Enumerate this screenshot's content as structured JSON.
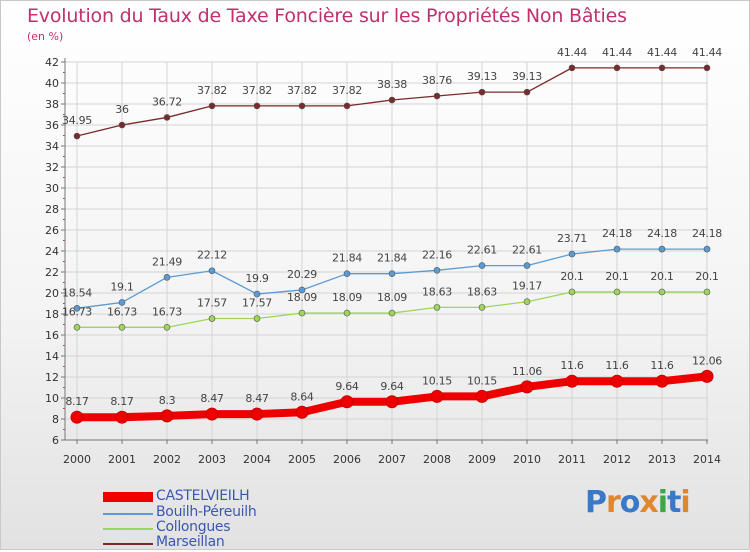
{
  "title": "Evolution du Taux de Taxe Foncière sur les Propriétés Non Bâties",
  "unit": "(en %)",
  "logo": {
    "text": "Proxiti",
    "colors": [
      "#3a78c8",
      "#e0862e",
      "#3a78c8",
      "#e0862e",
      "#3aa84a",
      "#3a78c8",
      "#e0862e"
    ]
  },
  "chart_data": {
    "type": "line",
    "x": [
      "2000",
      "2001",
      "2002",
      "2003",
      "2004",
      "2005",
      "2006",
      "2007",
      "2008",
      "2009",
      "2010",
      "2011",
      "2012",
      "2013",
      "2014"
    ],
    "ylim": [
      6,
      42
    ],
    "yticks": [
      "6",
      "8",
      "10",
      "12",
      "14",
      "16",
      "18",
      "20",
      "22",
      "24",
      "26",
      "28",
      "30",
      "32",
      "34",
      "36",
      "38",
      "40",
      "42"
    ],
    "grid": true,
    "legend_position": "bottom-left",
    "series": [
      {
        "name": "Marseillan",
        "color": "#7a2a2a",
        "width": 1.3,
        "dot": 3,
        "values": [
          34.95,
          36,
          36.72,
          37.82,
          37.82,
          37.82,
          37.82,
          38.38,
          38.76,
          39.13,
          39.13,
          41.44,
          41.44,
          41.44,
          41.44
        ],
        "labels": [
          "34.95",
          "36",
          "36.72",
          "37.82",
          "37.82",
          "37.82",
          "37.82",
          "38.38",
          "38.76",
          "39.13",
          "39.13",
          "41.44",
          "41.44",
          "41.44",
          "41.44"
        ]
      },
      {
        "name": "Bouilh-Péreuilh",
        "color": "#5b9bd5",
        "width": 1.3,
        "dot": 3,
        "values": [
          18.54,
          19.1,
          21.49,
          22.12,
          19.9,
          20.29,
          21.84,
          21.84,
          22.16,
          22.61,
          22.61,
          23.71,
          24.18,
          24.18,
          24.18
        ],
        "labels": [
          "18.54",
          "19.1",
          "21.49",
          "22.12",
          "19.9",
          "20.29",
          "21.84",
          "21.84",
          "22.16",
          "22.61",
          "22.61",
          "23.71",
          "24.18",
          "24.18",
          "24.18"
        ]
      },
      {
        "name": "Collongues",
        "color": "#9ed65a",
        "width": 1.3,
        "dot": 3,
        "values": [
          16.73,
          16.73,
          16.73,
          17.57,
          17.57,
          18.09,
          18.09,
          18.09,
          18.63,
          18.63,
          19.17,
          20.1,
          20.1,
          20.1,
          20.1
        ],
        "labels": [
          "16.73",
          "16.73",
          "16.73",
          "17.57",
          "17.57",
          "18.09",
          "18.09",
          "18.09",
          "18.63",
          "18.63",
          "19.17",
          "20.1",
          "20.1",
          "20.1",
          "20.1"
        ]
      },
      {
        "name": "CASTELVIEILH",
        "color": "#ee0000",
        "width": 8,
        "dot": 6,
        "values": [
          8.17,
          8.17,
          8.3,
          8.47,
          8.47,
          8.64,
          9.64,
          9.64,
          10.15,
          10.15,
          11.06,
          11.6,
          11.6,
          11.6,
          12.06
        ],
        "labels": [
          "8.17",
          "8.17",
          "8.3",
          "8.47",
          "8.47",
          "8.64",
          "9.64",
          "9.64",
          "10.15",
          "10.15",
          "11.06",
          "11.6",
          "11.6",
          "11.6",
          "12.06"
        ]
      }
    ],
    "legend_order": [
      "CASTELVIEILH",
      "Bouilh-Péreuilh",
      "Collongues",
      "Marseillan"
    ]
  }
}
